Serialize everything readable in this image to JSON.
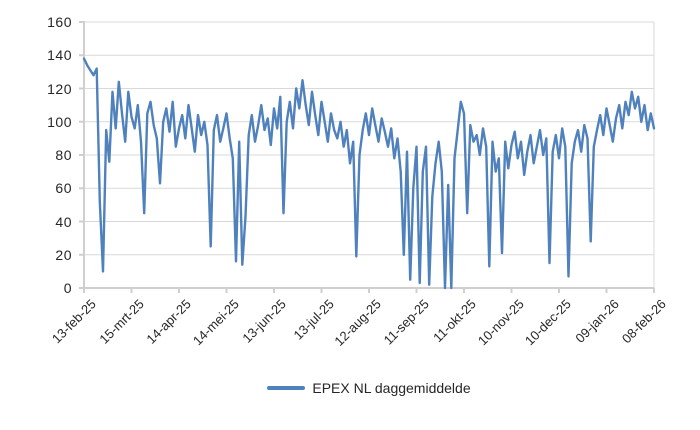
{
  "page": {
    "background": "#ffffff"
  },
  "colors": {
    "series_blue": "#4f81bd",
    "gridline": "#d9d9d9",
    "axis": "#cfcfcf",
    "text": "#262626"
  },
  "chart_data": {
    "type": "line",
    "title": "",
    "xlabel": "",
    "ylabel": "",
    "ylim": [
      0,
      160
    ],
    "y_ticks": [
      0,
      20,
      40,
      60,
      80,
      100,
      120,
      140,
      160
    ],
    "x_tick_labels": [
      "13-feb-25",
      "15-mrt-25",
      "14-apr-25",
      "14-mei-25",
      "13-jun-25",
      "13-jul-25",
      "12-aug-25",
      "11-sep-25",
      "11-okt-25",
      "10-nov-25",
      "10-dec-25",
      "09-jan-26",
      "08-feb-26"
    ],
    "x_tick_days": [
      0,
      30,
      60,
      90,
      120,
      150,
      180,
      210,
      240,
      270,
      300,
      330,
      360
    ],
    "x_domain_days": [
      0,
      360
    ],
    "grid": "horizontal-only",
    "legend_position": "bottom-center",
    "series": [
      {
        "name": "EPEX NL daggemiddelde",
        "color": "#4f81bd",
        "sample_interval_days": 2,
        "values_estimated": true,
        "values": [
          138,
          134,
          131,
          128,
          132,
          52,
          10,
          95,
          76,
          118,
          96,
          124,
          105,
          88,
          118,
          103,
          96,
          110,
          88,
          45,
          105,
          112,
          98,
          90,
          63,
          100,
          108,
          94,
          112,
          85,
          96,
          104,
          90,
          110,
          96,
          82,
          104,
          92,
          100,
          86,
          25,
          95,
          104,
          88,
          96,
          105,
          90,
          78,
          16,
          88,
          14,
          43,
          92,
          104,
          88,
          98,
          110,
          95,
          102,
          86,
          108,
          96,
          115,
          45,
          100,
          112,
          96,
          120,
          108,
          125,
          110,
          98,
          118,
          104,
          92,
          112,
          100,
          88,
          105,
          95,
          90,
          100,
          85,
          95,
          75,
          88,
          19,
          80,
          95,
          105,
          92,
          108,
          98,
          88,
          102,
          94,
          85,
          96,
          78,
          90,
          70,
          20,
          82,
          5,
          60,
          85,
          3,
          70,
          85,
          2,
          55,
          75,
          88,
          70,
          0,
          62,
          0,
          78,
          95,
          112,
          105,
          45,
          98,
          88,
          92,
          80,
          96,
          85,
          13,
          88,
          70,
          78,
          21,
          88,
          72,
          86,
          94,
          78,
          88,
          68,
          82,
          92,
          75,
          85,
          95,
          80,
          90,
          15,
          82,
          92,
          78,
          96,
          85,
          7,
          75,
          88,
          95,
          82,
          98,
          90,
          28,
          85,
          95,
          104,
          92,
          108,
          98,
          88,
          102,
          110,
          96,
          112,
          104,
          118,
          108,
          115,
          100,
          110,
          95,
          105,
          96
        ]
      }
    ]
  }
}
